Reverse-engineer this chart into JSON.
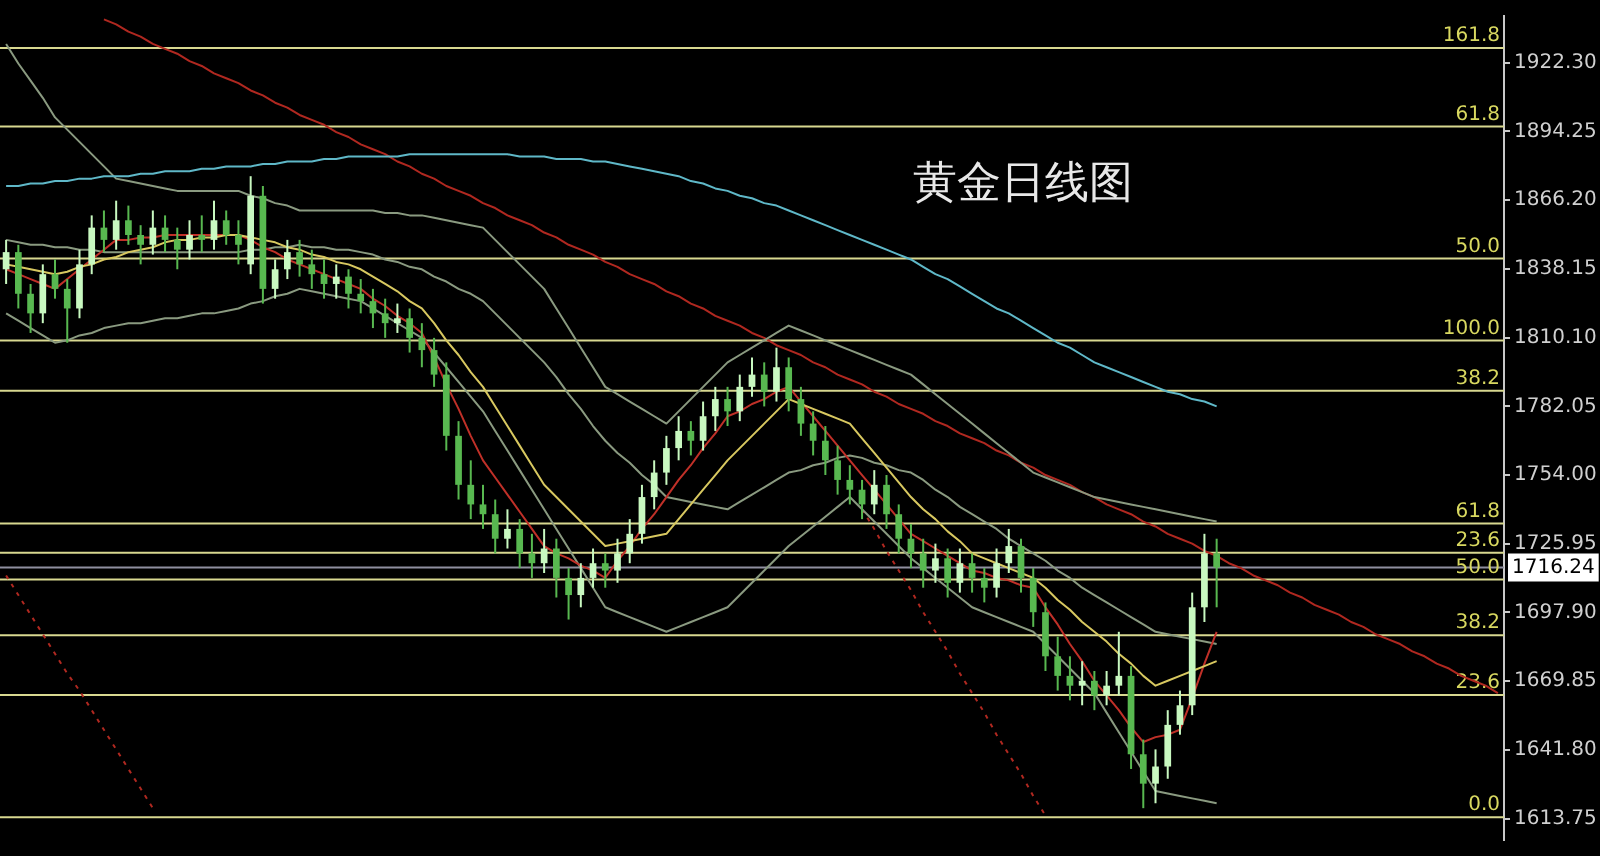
{
  "chart_data": {
    "type": "candlestick",
    "title": "黄金日线图",
    "categories": [
      null,
      null,
      null,
      null,
      null,
      null,
      null,
      null,
      null,
      null,
      null,
      null,
      null,
      null,
      null,
      null,
      null,
      null,
      null,
      null,
      null,
      null,
      null,
      null,
      null,
      null,
      null,
      null,
      null,
      null,
      null,
      null,
      null,
      null,
      null,
      null,
      null,
      null,
      null,
      null,
      null,
      null,
      null,
      null,
      null,
      null,
      null,
      null,
      null,
      null,
      null,
      null,
      null,
      null,
      null,
      null,
      null,
      null,
      null,
      null,
      null,
      null,
      null,
      null,
      null,
      null,
      null,
      null,
      null,
      null,
      null,
      null,
      null,
      null,
      null,
      null,
      null,
      null,
      null,
      null,
      null,
      null,
      null,
      null,
      null,
      null,
      null,
      null,
      null,
      null,
      null,
      null,
      null,
      null,
      null,
      null,
      null,
      null,
      null,
      null,
      null,
      null,
      null,
      null,
      null,
      null,
      null,
      null,
      null,
      null,
      null,
      null,
      null,
      null,
      null,
      null,
      null,
      null,
      null,
      null,
      null,
      null,
      null
    ],
    "ohlc": [
      [
        1838,
        1850,
        1832,
        1845
      ],
      [
        1845,
        1848,
        1822,
        1828
      ],
      [
        1828,
        1832,
        1812,
        1820
      ],
      [
        1820,
        1840,
        1816,
        1836
      ],
      [
        1836,
        1842,
        1826,
        1830
      ],
      [
        1830,
        1834,
        1808,
        1822
      ],
      [
        1822,
        1846,
        1818,
        1840
      ],
      [
        1840,
        1860,
        1836,
        1855
      ],
      [
        1855,
        1862,
        1845,
        1850
      ],
      [
        1850,
        1866,
        1846,
        1858
      ],
      [
        1858,
        1864,
        1848,
        1852
      ],
      [
        1852,
        1856,
        1840,
        1848
      ],
      [
        1848,
        1862,
        1844,
        1855
      ],
      [
        1855,
        1860,
        1845,
        1850
      ],
      [
        1850,
        1855,
        1838,
        1846
      ],
      [
        1846,
        1858,
        1842,
        1852
      ],
      [
        1852,
        1860,
        1845,
        1850
      ],
      [
        1850,
        1866,
        1846,
        1858
      ],
      [
        1858,
        1862,
        1848,
        1852
      ],
      [
        1852,
        1858,
        1840,
        1848
      ],
      [
        1840,
        1876,
        1836,
        1868
      ],
      [
        1868,
        1872,
        1824,
        1830
      ],
      [
        1830,
        1842,
        1826,
        1838
      ],
      [
        1838,
        1850,
        1834,
        1845
      ],
      [
        1845,
        1850,
        1835,
        1840
      ],
      [
        1840,
        1846,
        1830,
        1836
      ],
      [
        1836,
        1842,
        1826,
        1832
      ],
      [
        1832,
        1840,
        1826,
        1835
      ],
      [
        1835,
        1838,
        1822,
        1828
      ],
      [
        1828,
        1834,
        1820,
        1825
      ],
      [
        1825,
        1830,
        1814,
        1820
      ],
      [
        1820,
        1826,
        1810,
        1816
      ],
      [
        1816,
        1824,
        1812,
        1818
      ],
      [
        1818,
        1822,
        1804,
        1810
      ],
      [
        1810,
        1816,
        1798,
        1805
      ],
      [
        1805,
        1810,
        1790,
        1795
      ],
      [
        1795,
        1800,
        1764,
        1770
      ],
      [
        1770,
        1776,
        1744,
        1750
      ],
      [
        1750,
        1760,
        1736,
        1742
      ],
      [
        1742,
        1750,
        1732,
        1738
      ],
      [
        1738,
        1744,
        1722,
        1728
      ],
      [
        1728,
        1740,
        1724,
        1732
      ],
      [
        1732,
        1736,
        1716,
        1722
      ],
      [
        1722,
        1730,
        1712,
        1718
      ],
      [
        1718,
        1732,
        1714,
        1724
      ],
      [
        1724,
        1728,
        1704,
        1712
      ],
      [
        1712,
        1716,
        1695,
        1705
      ],
      [
        1705,
        1718,
        1700,
        1712
      ],
      [
        1712,
        1724,
        1708,
        1718
      ],
      [
        1718,
        1722,
        1708,
        1715
      ],
      [
        1715,
        1728,
        1710,
        1722
      ],
      [
        1722,
        1736,
        1718,
        1730
      ],
      [
        1730,
        1750,
        1726,
        1745
      ],
      [
        1745,
        1760,
        1740,
        1755
      ],
      [
        1755,
        1770,
        1750,
        1765
      ],
      [
        1765,
        1778,
        1760,
        1772
      ],
      [
        1772,
        1776,
        1762,
        1768
      ],
      [
        1768,
        1784,
        1764,
        1778
      ],
      [
        1778,
        1790,
        1772,
        1785
      ],
      [
        1785,
        1790,
        1774,
        1780
      ],
      [
        1780,
        1795,
        1776,
        1790
      ],
      [
        1790,
        1802,
        1786,
        1795
      ],
      [
        1795,
        1800,
        1782,
        1788
      ],
      [
        1788,
        1806,
        1784,
        1798
      ],
      [
        1798,
        1802,
        1780,
        1785
      ],
      [
        1785,
        1790,
        1770,
        1775
      ],
      [
        1775,
        1780,
        1762,
        1768
      ],
      [
        1768,
        1774,
        1754,
        1760
      ],
      [
        1760,
        1766,
        1746,
        1752
      ],
      [
        1752,
        1758,
        1742,
        1748
      ],
      [
        1748,
        1752,
        1736,
        1742
      ],
      [
        1742,
        1756,
        1738,
        1750
      ],
      [
        1750,
        1754,
        1732,
        1738
      ],
      [
        1738,
        1742,
        1722,
        1728
      ],
      [
        1728,
        1734,
        1716,
        1722
      ],
      [
        1722,
        1728,
        1708,
        1715
      ],
      [
        1715,
        1726,
        1710,
        1720
      ],
      [
        1720,
        1724,
        1704,
        1710
      ],
      [
        1710,
        1724,
        1706,
        1718
      ],
      [
        1718,
        1722,
        1706,
        1712
      ],
      [
        1712,
        1716,
        1702,
        1708
      ],
      [
        1708,
        1724,
        1704,
        1718
      ],
      [
        1718,
        1732,
        1714,
        1725
      ],
      [
        1725,
        1728,
        1706,
        1712
      ],
      [
        1712,
        1716,
        1692,
        1698
      ],
      [
        1698,
        1702,
        1674,
        1680
      ],
      [
        1680,
        1688,
        1666,
        1672
      ],
      [
        1672,
        1680,
        1662,
        1668
      ],
      [
        1668,
        1678,
        1660,
        1670
      ],
      [
        1670,
        1674,
        1658,
        1664
      ],
      [
        1664,
        1674,
        1660,
        1668
      ],
      [
        1668,
        1690,
        1664,
        1672
      ],
      [
        1672,
        1676,
        1634,
        1640
      ],
      [
        1640,
        1646,
        1618,
        1628
      ],
      [
        1628,
        1642,
        1620,
        1635
      ],
      [
        1635,
        1658,
        1630,
        1652
      ],
      [
        1652,
        1666,
        1648,
        1660
      ],
      [
        1660,
        1706,
        1656,
        1700
      ],
      [
        1700,
        1730,
        1694,
        1722
      ],
      [
        1722,
        1728,
        1700,
        1716.24
      ],
      null,
      null,
      null,
      null,
      null,
      null,
      null,
      null,
      null,
      null,
      null,
      null,
      null,
      null,
      null,
      null,
      null,
      null,
      null,
      null,
      null,
      null,
      null
    ],
    "colors": [
      "#c8f8c0",
      "#58b850",
      "#58b850",
      "#c8f8c0",
      "#58b850",
      "#58b850",
      "#c8f8c0",
      "#c8f8c0",
      "#58b850",
      "#c8f8c0",
      "#58b850",
      "#58b850",
      "#c8f8c0",
      "#58b850",
      "#58b850",
      "#c8f8c0",
      "#58b850",
      "#c8f8c0",
      "#58b850",
      "#58b850",
      "#c8f8c0",
      "#58b850",
      "#c8f8c0",
      "#c8f8c0",
      "#58b850",
      "#58b850",
      "#58b850",
      "#c8f8c0",
      "#58b850",
      "#58b850",
      "#58b850",
      "#58b850",
      "#c8f8c0",
      "#58b850",
      "#58b850",
      "#58b850",
      "#58b850",
      "#58b850",
      "#58b850",
      "#58b850",
      "#58b850",
      "#c8f8c0",
      "#58b850",
      "#58b850",
      "#c8f8c0",
      "#58b850",
      "#58b850",
      "#c8f8c0",
      "#c8f8c0",
      "#58b850",
      "#c8f8c0",
      "#c8f8c0",
      "#c8f8c0",
      "#c8f8c0",
      "#c8f8c0",
      "#c8f8c0",
      "#58b850",
      "#c8f8c0",
      "#c8f8c0",
      "#58b850",
      "#c8f8c0",
      "#c8f8c0",
      "#58b850",
      "#c8f8c0",
      "#58b850",
      "#58b850",
      "#58b850",
      "#58b850",
      "#58b850",
      "#58b850",
      "#58b850",
      "#c8f8c0",
      "#58b850",
      "#58b850",
      "#58b850",
      "#58b850",
      "#c8f8c0",
      "#58b850",
      "#c8f8c0",
      "#58b850",
      "#58b850",
      "#c8f8c0",
      "#c8f8c0",
      "#58b850",
      "#58b850",
      "#58b850",
      "#58b850",
      "#58b850",
      "#c8f8c0",
      "#58b850",
      "#c8f8c0",
      "#c8f8c0",
      "#58b850",
      "#58b850",
      "#c8f8c0",
      "#c8f8c0",
      "#c8f8c0",
      "#c8f8c0",
      "#c8f8c0",
      "#58b850",
      null,
      null,
      null,
      null,
      null,
      null,
      null,
      null,
      null,
      null,
      null,
      null,
      null,
      null,
      null,
      null,
      null,
      null,
      null,
      null,
      null,
      null,
      null
    ],
    "series": [
      {
        "type": "line",
        "color": "#5fb8c8",
        "values": [
          1872,
          1872,
          1873,
          1873,
          1874,
          1874,
          1875,
          1875,
          1876,
          1876,
          1876,
          1877,
          1877,
          1878,
          1878,
          1878,
          1879,
          1879,
          1880,
          1880,
          1880,
          1881,
          1881,
          1882,
          1882,
          1882,
          1883,
          1883,
          1884,
          1884,
          1884,
          1884,
          1884,
          1885,
          1885,
          1885,
          1885,
          1885,
          1885,
          1885,
          1885,
          1885,
          1884,
          1884,
          1884,
          1883,
          1883,
          1883,
          1882,
          1882,
          1881,
          1880,
          1879,
          1878,
          1877,
          1876,
          1874,
          1873,
          1871,
          1870,
          1868,
          1867,
          1865,
          1864,
          1862,
          1860,
          1858,
          1856,
          1854,
          1852,
          1850,
          1848,
          1846,
          1844,
          1842,
          1839,
          1836,
          1834,
          1831,
          1828,
          1825,
          1822,
          1820,
          1817,
          1814,
          1811,
          1808,
          1806,
          1803,
          1800,
          1798,
          1796,
          1794,
          1792,
          1790,
          1788,
          1787,
          1785,
          1784,
          1782,
          null,
          null,
          null,
          null,
          null,
          null,
          null,
          null,
          null,
          null,
          null,
          null,
          null,
          null,
          null,
          null,
          null,
          null,
          null,
          null,
          null,
          null,
          null
        ]
      },
      {
        "type": "line",
        "color": "#d8c860",
        "values": [
          1840,
          1839,
          1838,
          1837,
          1836,
          1837,
          1839,
          1840,
          1842,
          1843,
          1845,
          1846,
          1847,
          1849,
          1850,
          1850,
          1851,
          1851,
          1852,
          1852,
          1851,
          1850,
          1849,
          1847,
          1846,
          1844,
          1843,
          1841,
          1840,
          1838,
          1835,
          1832,
          1829,
          1825,
          1822,
          1816,
          1809,
          1803,
          1796,
          1790,
          1782,
          1774,
          1766,
          1758,
          1750,
          1745,
          1740,
          1735,
          1730,
          1725,
          1726,
          1727,
          1728,
          1729,
          1730,
          1736,
          1742,
          1748,
          1754,
          1760,
          1765,
          1770,
          1775,
          1780,
          1785,
          1783,
          1781,
          1779,
          1777,
          1775,
          1769,
          1763,
          1757,
          1751,
          1745,
          1740,
          1736,
          1731,
          1727,
          1722,
          1720,
          1718,
          1716,
          1714,
          1712,
          1708,
          1703,
          1699,
          1694,
          1690,
          1686,
          1681,
          1677,
          1672,
          1668,
          1670,
          1672,
          1674,
          1676,
          1678,
          null,
          null,
          null,
          null,
          null,
          null,
          null,
          null,
          null,
          null,
          null,
          null,
          null,
          null,
          null,
          null,
          null,
          null,
          null,
          null,
          null,
          null,
          null
        ]
      },
      {
        "type": "line",
        "color": "#c03028",
        "values": [
          1838,
          1836,
          1834,
          1832,
          1830,
          1834,
          1838,
          1842,
          1846,
          1850,
          1850,
          1851,
          1851,
          1852,
          1852,
          1852,
          1852,
          1852,
          1852,
          1852,
          1850,
          1847,
          1845,
          1842,
          1840,
          1838,
          1836,
          1834,
          1832,
          1830,
          1826,
          1823,
          1819,
          1816,
          1812,
          1802,
          1791,
          1781,
          1770,
          1760,
          1753,
          1746,
          1739,
          1732,
          1725,
          1722,
          1720,
          1717,
          1715,
          1712,
          1719,
          1725,
          1732,
          1738,
          1745,
          1752,
          1758,
          1765,
          1771,
          1778,
          1780,
          1783,
          1785,
          1788,
          1790,
          1784,
          1778,
          1772,
          1766,
          1760,
          1754,
          1748,
          1742,
          1736,
          1730,
          1727,
          1724,
          1721,
          1718,
          1715,
          1714,
          1712,
          1711,
          1709,
          1708,
          1700,
          1693,
          1685,
          1678,
          1670,
          1664,
          1658,
          1651,
          1645,
          1647,
          1648,
          1650,
          1663,
          1677,
          1690,
          null,
          null,
          null,
          null,
          null,
          null,
          null,
          null,
          null,
          null,
          null,
          null,
          null,
          null,
          null,
          null,
          null,
          null,
          null,
          null,
          null,
          null,
          null
        ]
      },
      {
        "type": "line",
        "color": "#8a9a80",
        "values": [
          1930,
          1922,
          1915,
          1908,
          1900,
          1895,
          1890,
          1885,
          1880,
          1875,
          1874,
          1873,
          1872,
          1871,
          1870,
          1870,
          1870,
          1870,
          1870,
          1870,
          1868,
          1867,
          1865,
          1864,
          1862,
          1862,
          1862,
          1862,
          1862,
          1862,
          1862,
          1861,
          1861,
          1860,
          1860,
          1859,
          1858,
          1857,
          1856,
          1855,
          1850,
          1845,
          1840,
          1835,
          1830,
          1822,
          1814,
          1806,
          1798,
          1790,
          1787,
          1784,
          1781,
          1778,
          1775,
          1780,
          1785,
          1790,
          1795,
          1800,
          1803,
          1806,
          1809,
          1812,
          1815,
          1813,
          1811,
          1809,
          1807,
          1805,
          1803,
          1801,
          1799,
          1797,
          1795,
          1791,
          1787,
          1783,
          1779,
          1775,
          1771,
          1767,
          1763,
          1759,
          1755,
          1753,
          1751,
          1749,
          1747,
          1745,
          1744,
          1743,
          1742,
          1741,
          1740,
          1739,
          1738,
          1737,
          1736,
          1735,
          null,
          null,
          null,
          null,
          null,
          null,
          null,
          null,
          null,
          null,
          null,
          null,
          null,
          null,
          null,
          null,
          null,
          null,
          null,
          null,
          null,
          null,
          null
        ]
      },
      {
        "type": "line",
        "color": "#8a9a80",
        "values": [
          1850,
          1849,
          1848,
          1848,
          1847,
          1847,
          1846,
          1846,
          1845,
          1845,
          1845,
          1845,
          1845,
          1845,
          1845,
          1845,
          1845,
          1845,
          1845,
          1845,
          1846,
          1846,
          1847,
          1847,
          1848,
          1847,
          1847,
          1846,
          1846,
          1845,
          1844,
          1842,
          1841,
          1839,
          1838,
          1835,
          1833,
          1830,
          1828,
          1825,
          1820,
          1815,
          1810,
          1805,
          1800,
          1794,
          1787,
          1781,
          1774,
          1768,
          1763,
          1759,
          1754,
          1750,
          1745,
          1744,
          1743,
          1742,
          1741,
          1740,
          1743,
          1746,
          1749,
          1752,
          1755,
          1756,
          1758,
          1759,
          1761,
          1762,
          1761,
          1759,
          1758,
          1756,
          1755,
          1752,
          1748,
          1745,
          1741,
          1738,
          1735,
          1732,
          1728,
          1725,
          1722,
          1719,
          1715,
          1712,
          1708,
          1705,
          1702,
          1699,
          1696,
          1693,
          1690,
          1689,
          1688,
          1687,
          1686,
          1685,
          null,
          null,
          null,
          null,
          null,
          null,
          null,
          null,
          null,
          null,
          null,
          null,
          null,
          null,
          null,
          null,
          null,
          null,
          null,
          null,
          null,
          null,
          null
        ]
      },
      {
        "type": "line",
        "color": "#8a9a80",
        "values": [
          1820,
          1817,
          1814,
          1811,
          1808,
          1809,
          1811,
          1812,
          1814,
          1815,
          1816,
          1816,
          1817,
          1818,
          1818,
          1819,
          1820,
          1820,
          1821,
          1822,
          1824,
          1825,
          1827,
          1828,
          1830,
          1829,
          1828,
          1827,
          1826,
          1825,
          1822,
          1819,
          1816,
          1813,
          1810,
          1804,
          1798,
          1792,
          1786,
          1780,
          1772,
          1764,
          1756,
          1748,
          1740,
          1732,
          1724,
          1716,
          1708,
          1700,
          1698,
          1696,
          1694,
          1692,
          1690,
          1692,
          1694,
          1696,
          1698,
          1700,
          1705,
          1710,
          1715,
          1720,
          1725,
          1729,
          1733,
          1737,
          1741,
          1745,
          1740,
          1735,
          1730,
          1725,
          1720,
          1716,
          1712,
          1708,
          1704,
          1700,
          1698,
          1696,
          1694,
          1692,
          1690,
          1685,
          1680,
          1675,
          1670,
          1665,
          1657,
          1649,
          1641,
          1633,
          1625,
          1624,
          1623,
          1622,
          1621,
          1620,
          null,
          null,
          null,
          null,
          null,
          null,
          null,
          null,
          null,
          null,
          null,
          null,
          null,
          null,
          null,
          null,
          null,
          null,
          null,
          null,
          null,
          null,
          null
        ]
      },
      {
        "type": "line",
        "color": "#b02820",
        "values": [
          null,
          null,
          null,
          null,
          null,
          null,
          null,
          null,
          1940,
          1938,
          1935,
          1933,
          1930,
          1928,
          1926,
          1923,
          1921,
          1918,
          1916,
          1914,
          1911,
          1909,
          1906,
          1904,
          1901,
          1899,
          1897,
          1894,
          1892,
          1889,
          1887,
          1885,
          1882,
          1880,
          1877,
          1875,
          1872,
          1870,
          1868,
          1865,
          1863,
          1860,
          1858,
          1856,
          1853,
          1851,
          1848,
          1846,
          1844,
          1841,
          1839,
          1836,
          1834,
          1832,
          1829,
          1827,
          1824,
          1822,
          1819,
          1817,
          1815,
          1812,
          1810,
          1807,
          1805,
          1803,
          1800,
          1798,
          1795,
          1793,
          1791,
          1788,
          1786,
          1783,
          1781,
          1779,
          1776,
          1774,
          1771,
          1769,
          1767,
          1764,
          1762,
          1759,
          1757,
          1754,
          1752,
          1750,
          1747,
          1745,
          1742,
          1740,
          1738,
          1735,
          1733,
          1730,
          1728,
          1726,
          1723,
          1721,
          1718,
          1716,
          1713,
          1711,
          1709,
          1706,
          1704,
          1701,
          1699,
          1697,
          1694,
          1692,
          1689,
          1687,
          1685,
          1682,
          1680,
          1677,
          1675,
          1672,
          1670,
          1668,
          1665
        ]
      },
      {
        "type": "line",
        "color": "#b02820",
        "line_style": "dotted",
        "values": [
          1713,
          1705,
          1697,
          1689,
          1681,
          1673,
          1666,
          1658,
          1650,
          1642,
          1634,
          1626,
          1618,
          null,
          null,
          null,
          null,
          null,
          null,
          null,
          null,
          null,
          null,
          null,
          null,
          null,
          null,
          null,
          null,
          null,
          null,
          null,
          null,
          null,
          null,
          null,
          null,
          null,
          null,
          null,
          null,
          null,
          null,
          null,
          null,
          null,
          null,
          null,
          null,
          null,
          null,
          null,
          null,
          null,
          null,
          null,
          null,
          null,
          null,
          null,
          null,
          null,
          null,
          null,
          null,
          null,
          null,
          null,
          null,
          null,
          null,
          null,
          null,
          null,
          null,
          null,
          null,
          null,
          null,
          null,
          null,
          null,
          null,
          null,
          null,
          null,
          null,
          null,
          null,
          null,
          null,
          null,
          null,
          null,
          null,
          null,
          null,
          null,
          null,
          null,
          null,
          null,
          null,
          null,
          null,
          null,
          null,
          null,
          null,
          null,
          null,
          null,
          null,
          null,
          null,
          null,
          null,
          null,
          null,
          null,
          null,
          null,
          null
        ]
      },
      {
        "type": "line",
        "color": "#b02820",
        "line_style": "dotted",
        "values": [
          null,
          null,
          null,
          null,
          null,
          null,
          null,
          null,
          null,
          null,
          null,
          null,
          null,
          null,
          null,
          null,
          null,
          null,
          null,
          null,
          null,
          null,
          null,
          null,
          null,
          null,
          null,
          null,
          null,
          null,
          null,
          null,
          null,
          null,
          null,
          null,
          null,
          null,
          null,
          null,
          null,
          null,
          null,
          null,
          null,
          null,
          null,
          null,
          null,
          null,
          null,
          null,
          null,
          null,
          null,
          null,
          null,
          null,
          null,
          null,
          null,
          null,
          null,
          null,
          null,
          null,
          null,
          null,
          null,
          null,
          1740,
          1732,
          1723,
          1715,
          1707,
          1698,
          1690,
          1682,
          1673,
          1665,
          1657,
          1648,
          1640,
          1632,
          1623,
          1615,
          null,
          null,
          null,
          null,
          null,
          null,
          null,
          null,
          null,
          null,
          null,
          null,
          null,
          null,
          null,
          null,
          null,
          null,
          null,
          null,
          null,
          null,
          null,
          null,
          null,
          null,
          null,
          null,
          null,
          null,
          null,
          null,
          null,
          null,
          null,
          null,
          null
        ]
      }
    ],
    "ylim": [
      1605,
      1941.4
    ],
    "yticks": [
      {
        "value": 1922.3,
        "label": "1922.30"
      },
      {
        "value": 1894.25,
        "label": "1894.25"
      },
      {
        "value": 1866.2,
        "label": "1866.20"
      },
      {
        "value": 1838.15,
        "label": "1838.15"
      },
      {
        "value": 1810.1,
        "label": "1810.10"
      },
      {
        "value": 1782.05,
        "label": "1782.05"
      },
      {
        "value": 1754,
        "label": "1754.00"
      },
      {
        "value": 1725.95,
        "label": "1725.95"
      },
      {
        "value": 1697.9,
        "label": "1697.90"
      },
      {
        "value": 1669.85,
        "label": "1669.85"
      },
      {
        "value": 1641.8,
        "label": "1641.80"
      },
      {
        "value": 1613.75,
        "label": "1613.75"
      }
    ],
    "tick_labels": "y",
    "ref_lines": [
      {
        "axis": "y",
        "value": 1928.3,
        "color": "#d8d890"
      },
      {
        "axis": "y",
        "value": 1896.3,
        "color": "#d8d890"
      },
      {
        "axis": "y",
        "value": 1842.4,
        "color": "#d8d890"
      },
      {
        "axis": "y",
        "value": 1808.9,
        "color": "#d8d890"
      },
      {
        "axis": "y",
        "value": 1788.4,
        "color": "#d8d890"
      },
      {
        "axis": "y",
        "value": 1734.2,
        "color": "#d8d890"
      },
      {
        "axis": "y",
        "value": 1722.3,
        "color": "#d8d890"
      },
      {
        "axis": "y",
        "value": 1716.24,
        "label": "1716.24",
        "color": "#9090a0"
      },
      {
        "axis": "y",
        "value": 1711.3,
        "color": "#d8d890"
      },
      {
        "axis": "y",
        "value": 1688.6,
        "color": "#d8d890"
      },
      {
        "axis": "y",
        "value": 1664.2,
        "color": "#d8d890"
      },
      {
        "axis": "y",
        "value": 1614.3,
        "color": "#d8d890"
      }
    ],
    "annotations": [
      {
        "text": "161.8",
        "y": 1928.3
      },
      {
        "text": "61.8",
        "y": 1896.3
      },
      {
        "text": "50.0",
        "y": 1842.4
      },
      {
        "text": "100.0",
        "y": 1808.9
      },
      {
        "text": "38.2",
        "y": 1788.4
      },
      {
        "text": "61.8",
        "y": 1734.2
      },
      {
        "text": "23.6",
        "y": 1722.3
      },
      {
        "text": "50.0",
        "y": 1711.3
      },
      {
        "text": "38.2",
        "y": 1688.6
      },
      {
        "text": "23.6",
        "y": 1664.2
      },
      {
        "text": "0.0",
        "y": 1614.3
      }
    ],
    "grid": false,
    "legend": false,
    "marker": "none",
    "line_style": "solid"
  }
}
